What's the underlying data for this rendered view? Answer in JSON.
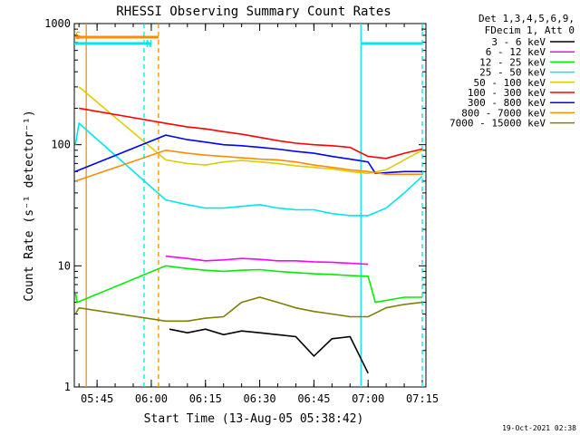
{
  "title": "RHESSI Observing Summary Count Rates",
  "timestamp": "19-Oct-2021 02:38",
  "legend_header": [
    "Det 1,3,4,5,6,9,",
    "FDecim 1, Att 0"
  ],
  "chart_data": {
    "type": "line",
    "title": "RHESSI Observing Summary Count Rates",
    "xlabel": "Start Time (13-Aug-05 05:38:42)",
    "ylabel": "Count Rate (s⁻¹ detector⁻¹)",
    "x_scale": "time",
    "y_scale": "log",
    "xlim": [
      "05:38:42",
      "07:16:00"
    ],
    "ylim": [
      1,
      1000
    ],
    "x_ticks": [
      "05:45",
      "06:00",
      "06:15",
      "06:30",
      "06:45",
      "07:00",
      "07:15"
    ],
    "y_ticks": [
      "1",
      "10",
      "100",
      "1000"
    ],
    "grid": false,
    "legend_position": "right",
    "flag_markers": [
      {
        "label": "S",
        "color": "#ff8c00",
        "from": "05:39",
        "to": "06:02"
      },
      {
        "label": "N",
        "color": "#00e5ee",
        "from": "05:38:42",
        "to": "06:00"
      },
      {
        "label": "",
        "color": "#00e5ee",
        "from": "06:58",
        "to": "07:15"
      }
    ],
    "vertical_lines": [
      {
        "time": "05:42",
        "color": "#ff8c00",
        "style": "solid"
      },
      {
        "time": "05:58",
        "color": "#00e5ee",
        "style": "dashed"
      },
      {
        "time": "06:02",
        "color": "#ff8c00",
        "style": "dashed"
      },
      {
        "time": "06:58",
        "color": "#00e5ee",
        "style": "solid"
      },
      {
        "time": "07:15",
        "color": "#00e5ee",
        "style": "dashed"
      }
    ],
    "series": [
      {
        "name": "3 - 6 keV",
        "color": "#000000",
        "points": [
          [
            "06:05",
            3
          ],
          [
            "06:10",
            2.8
          ],
          [
            "06:15",
            3
          ],
          [
            "06:20",
            2.7
          ],
          [
            "06:25",
            2.9
          ],
          [
            "06:30",
            2.8
          ],
          [
            "06:35",
            2.7
          ],
          [
            "06:40",
            2.6
          ],
          [
            "06:45",
            1.8
          ],
          [
            "06:50",
            2.5
          ],
          [
            "06:55",
            2.6
          ],
          [
            "07:00",
            1.3
          ]
        ]
      },
      {
        "name": "6 - 12 keV",
        "color": "#ff00ff",
        "points": [
          [
            "06:04",
            12
          ],
          [
            "06:10",
            11.5
          ],
          [
            "06:15",
            11
          ],
          [
            "06:20",
            11.2
          ],
          [
            "06:25",
            11.5
          ],
          [
            "06:30",
            11.3
          ],
          [
            "06:35",
            11
          ],
          [
            "06:40",
            11
          ],
          [
            "06:45",
            10.8
          ],
          [
            "06:50",
            10.7
          ],
          [
            "06:55",
            10.5
          ],
          [
            "07:00",
            10.3
          ]
        ]
      },
      {
        "name": "12 - 25 keV",
        "color": "#00ee00",
        "points": [
          [
            "05:39",
            6
          ],
          [
            "05:39:30",
            5
          ],
          [
            "06:04",
            10
          ],
          [
            "06:10",
            9.5
          ],
          [
            "06:15",
            9.2
          ],
          [
            "06:20",
            9
          ],
          [
            "06:25",
            9.2
          ],
          [
            "06:30",
            9.3
          ],
          [
            "06:35",
            9
          ],
          [
            "06:40",
            8.8
          ],
          [
            "06:45",
            8.6
          ],
          [
            "06:50",
            8.5
          ],
          [
            "06:55",
            8.3
          ],
          [
            "07:00",
            8.2
          ],
          [
            "07:02",
            5
          ],
          [
            "07:10",
            5.5
          ],
          [
            "07:15",
            5.5
          ]
        ]
      },
      {
        "name": "25 - 50 keV",
        "color": "#00e5ee",
        "points": [
          [
            "05:39",
            100
          ],
          [
            "05:40",
            150
          ],
          [
            "06:04",
            35
          ],
          [
            "06:10",
            32
          ],
          [
            "06:15",
            30
          ],
          [
            "06:20",
            30
          ],
          [
            "06:25",
            31
          ],
          [
            "06:30",
            32
          ],
          [
            "06:35",
            30
          ],
          [
            "06:40",
            29
          ],
          [
            "06:45",
            29
          ],
          [
            "06:50",
            27
          ],
          [
            "06:55",
            26
          ],
          [
            "07:00",
            26
          ],
          [
            "07:05",
            30
          ],
          [
            "07:10",
            40
          ],
          [
            "07:15",
            55
          ]
        ]
      },
      {
        "name": "50 - 100 keV",
        "color": "#ddcc00",
        "points": [
          [
            "05:40",
            300
          ],
          [
            "06:04",
            75
          ],
          [
            "06:10",
            70
          ],
          [
            "06:15",
            68
          ],
          [
            "06:20",
            72
          ],
          [
            "06:25",
            74
          ],
          [
            "06:30",
            72
          ],
          [
            "06:35",
            70
          ],
          [
            "06:40",
            67
          ],
          [
            "06:45",
            65
          ],
          [
            "06:50",
            63
          ],
          [
            "06:55",
            60
          ],
          [
            "07:00",
            58
          ],
          [
            "07:05",
            62
          ],
          [
            "07:10",
            75
          ],
          [
            "07:15",
            90
          ]
        ]
      },
      {
        "name": "100 - 300 keV",
        "color": "#ff0000",
        "points": [
          [
            "05:40",
            200
          ],
          [
            "06:04",
            150
          ],
          [
            "06:10",
            140
          ],
          [
            "06:15",
            135
          ],
          [
            "06:20",
            128
          ],
          [
            "06:25",
            122
          ],
          [
            "06:30",
            115
          ],
          [
            "06:35",
            108
          ],
          [
            "06:40",
            103
          ],
          [
            "06:45",
            100
          ],
          [
            "06:50",
            98
          ],
          [
            "06:55",
            95
          ],
          [
            "07:00",
            80
          ],
          [
            "07:05",
            77
          ],
          [
            "07:10",
            85
          ],
          [
            "07:15",
            92
          ]
        ]
      },
      {
        "name": "300 - 800 keV",
        "color": "#0000ff",
        "points": [
          [
            "05:39",
            60
          ],
          [
            "06:04",
            120
          ],
          [
            "06:10",
            110
          ],
          [
            "06:15",
            105
          ],
          [
            "06:20",
            100
          ],
          [
            "06:25",
            98
          ],
          [
            "06:30",
            95
          ],
          [
            "06:35",
            92
          ],
          [
            "06:40",
            88
          ],
          [
            "06:45",
            85
          ],
          [
            "06:50",
            80
          ],
          [
            "06:55",
            76
          ],
          [
            "07:00",
            72
          ],
          [
            "07:02",
            58
          ],
          [
            "07:10",
            60
          ],
          [
            "07:15",
            60
          ]
        ]
      },
      {
        "name": "800 - 7000 keV",
        "color": "#ff8c00",
        "points": [
          [
            "05:39",
            50
          ],
          [
            "06:04",
            90
          ],
          [
            "06:10",
            85
          ],
          [
            "06:15",
            82
          ],
          [
            "06:20",
            80
          ],
          [
            "06:25",
            78
          ],
          [
            "06:30",
            76
          ],
          [
            "06:35",
            75
          ],
          [
            "06:40",
            72
          ],
          [
            "06:45",
            68
          ],
          [
            "06:50",
            65
          ],
          [
            "06:55",
            62
          ],
          [
            "07:00",
            60
          ],
          [
            "07:05",
            57
          ],
          [
            "07:10",
            57
          ],
          [
            "07:15",
            57
          ]
        ]
      },
      {
        "name": "7000 - 15000 keV",
        "color": "#808000",
        "points": [
          [
            "05:39",
            4
          ],
          [
            "05:40",
            4.5
          ],
          [
            "06:04",
            3.5
          ],
          [
            "06:10",
            3.5
          ],
          [
            "06:15",
            3.7
          ],
          [
            "06:20",
            3.8
          ],
          [
            "06:25",
            5
          ],
          [
            "06:30",
            5.5
          ],
          [
            "06:35",
            5
          ],
          [
            "06:40",
            4.5
          ],
          [
            "06:45",
            4.2
          ],
          [
            "06:50",
            4
          ],
          [
            "06:55",
            3.8
          ],
          [
            "07:00",
            3.8
          ],
          [
            "07:05",
            4.5
          ],
          [
            "07:10",
            4.8
          ],
          [
            "07:15",
            5
          ]
        ]
      }
    ]
  }
}
